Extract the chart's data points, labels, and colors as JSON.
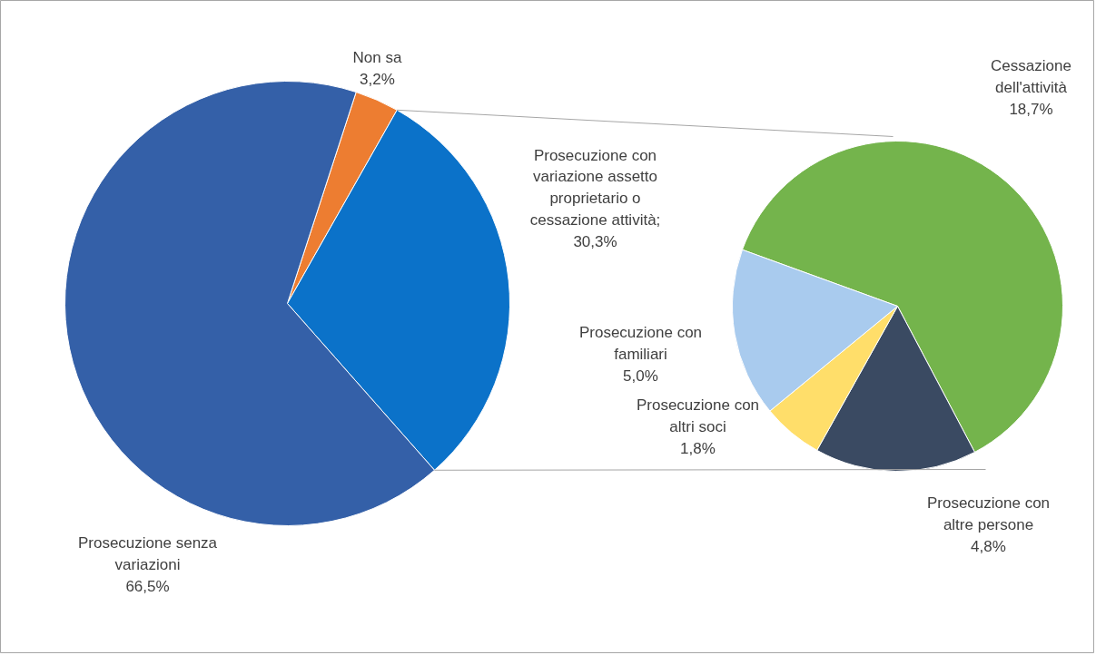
{
  "chart_data": [
    {
      "type": "pie",
      "categories": [
        "Non sa",
        "Prosecuzione con variazione assetto proprietario o cessazione attività",
        "Prosecuzione senza variazioni"
      ],
      "values": [
        3.2,
        30.3,
        66.5
      ],
      "colors": [
        "#ed7d31",
        "#0b72c9",
        "#3460a8"
      ],
      "value_labels": [
        "3,2%",
        "; 30,3%",
        "66,5%"
      ]
    },
    {
      "type": "pie",
      "categories": [
        "Cessazione dell'attività",
        "Prosecuzione con altre persone",
        "Prosecuzione con altri soci",
        "Prosecuzione con familiari"
      ],
      "values": [
        18.7,
        4.8,
        1.8,
        5.0
      ],
      "colors": [
        "#74b44c",
        "#3a4a62",
        "#ffde6a",
        "#a9cbee"
      ],
      "value_labels": [
        "18,7%",
        "4,8%",
        "1,8%",
        "5,0%"
      ]
    }
  ]
}
